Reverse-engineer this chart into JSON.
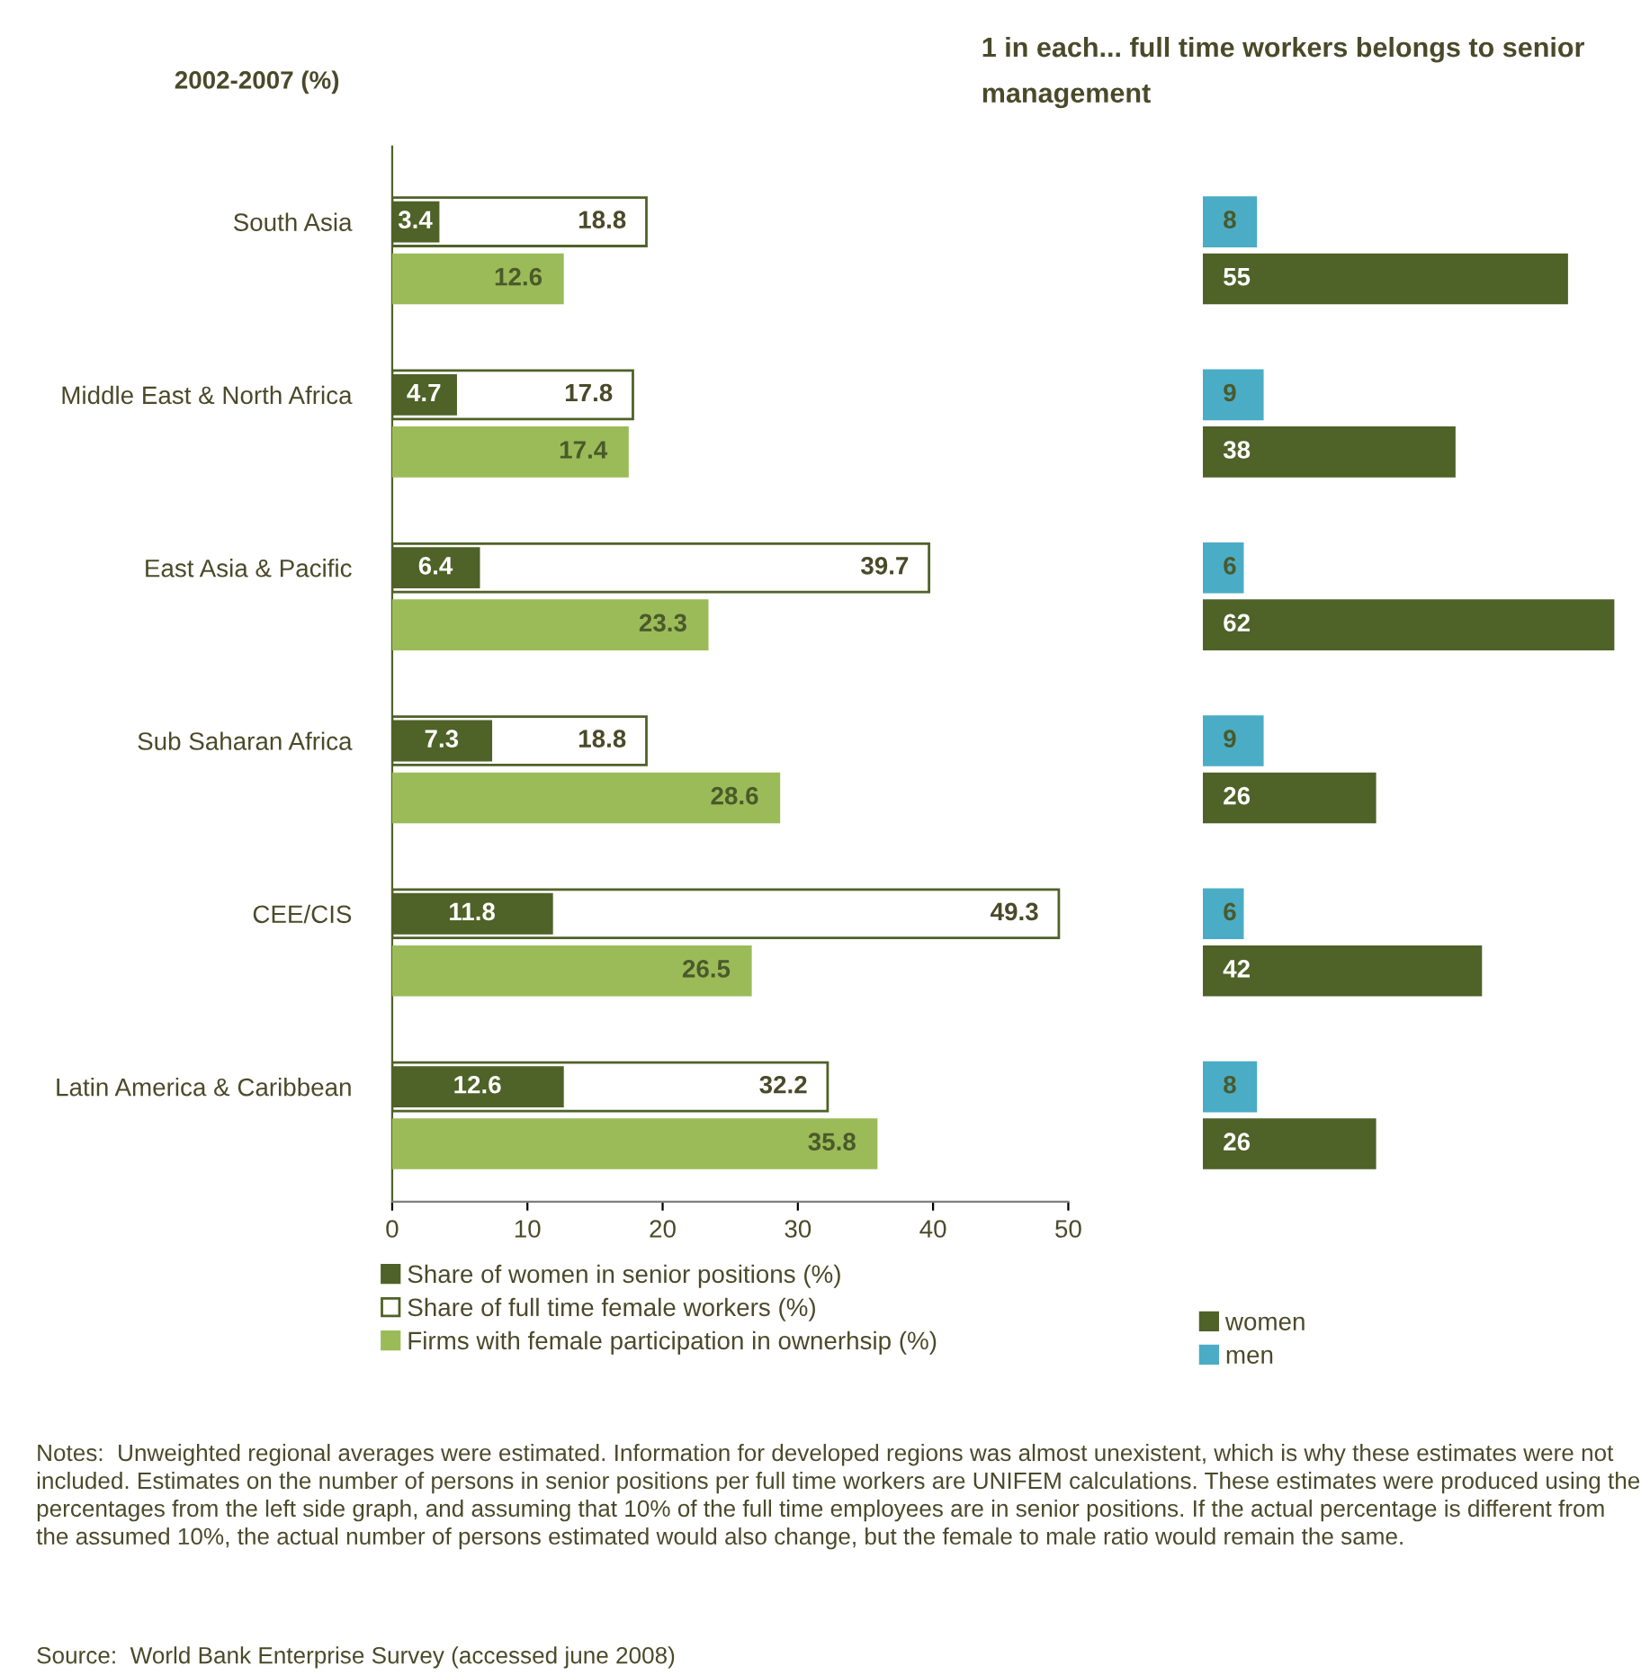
{
  "chart_data": [
    {
      "type": "bar",
      "orientation": "horizontal",
      "title": "2002-2007 (%)",
      "categories": [
        "South Asia",
        "Middle East & North Africa",
        "East Asia & Pacific",
        "Sub Saharan Africa",
        "CEE/CIS",
        "Latin America & Caribbean"
      ],
      "series": [
        {
          "name": "Share of full time female workers (%)",
          "color": "#ffffff",
          "values": [
            18.8,
            17.8,
            39.7,
            18.8,
            49.3,
            32.2
          ]
        },
        {
          "name": "Share of women in senior positions (%)",
          "color": "#4f6228",
          "values": [
            3.4,
            4.7,
            6.4,
            7.3,
            11.8,
            12.6
          ]
        },
        {
          "name": "Firms with female participation in ownerhsip (%)",
          "color": "#9bbb59",
          "values": [
            12.6,
            17.4,
            23.3,
            28.6,
            26.5,
            35.8
          ]
        }
      ],
      "xlim": [
        0,
        50
      ],
      "xticks": [
        0,
        10,
        20,
        30,
        40,
        50
      ],
      "data_labels": true,
      "grid": false,
      "legend": "bottom",
      "annotations": [
        "Notes:  Unweighted regional averages were estimated. Information for developed regions was almost unexistent, which is why these estimates were not included. Estimates on the number of persons in senior positions per full time workers are UNIFEM calculations. These estimates were produced using the percentages from the left side graph, and assuming that 10% of the full time employees are in senior positions. If the actual percentage is different from the assumed 10%, the actual number of persons estimated would also change, but the female to male ratio would remain the same.",
        "Source:  World Bank Enterprise Survey (accessed june 2008)"
      ]
    },
    {
      "type": "bar",
      "orientation": "horizontal",
      "title": "1 in each... full time workers belongs to senior management",
      "categories": [
        null,
        null,
        null,
        null,
        null,
        null
      ],
      "series": [
        {
          "name": "men",
          "color": "#4bacc6",
          "values": [
            8,
            9,
            6,
            9,
            6,
            8
          ]
        },
        {
          "name": "women",
          "color": "#4f6228",
          "values": [
            55,
            38,
            62,
            26,
            42,
            26
          ]
        }
      ],
      "data_labels": true,
      "grid": false,
      "legend": "bottom"
    }
  ]
}
